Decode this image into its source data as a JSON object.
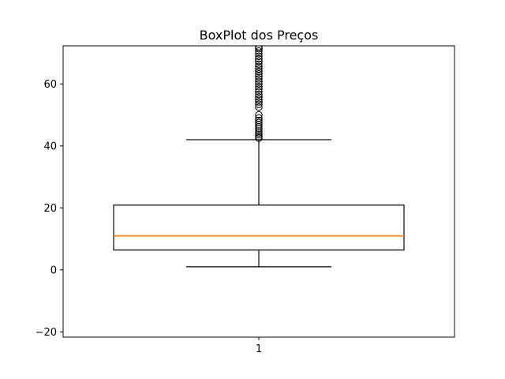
{
  "chart_data": {
    "type": "box",
    "title": "BoxPlot dos Preços",
    "xlabel": "",
    "ylabel": "",
    "ylim": [
      -21.7,
      72.3
    ],
    "yticks": [
      -20,
      0,
      20,
      40,
      60
    ],
    "xticks": [
      "1"
    ],
    "grid": false,
    "box": {
      "category": "1",
      "whisker_low": 1.0,
      "q1": 6.4,
      "median": 11.0,
      "q3": 20.9,
      "whisker_high": 42.0,
      "outliers": [
        42.5,
        43.0,
        43.6,
        44.2,
        44.8,
        45.5,
        46.1,
        46.8,
        47.5,
        48.2,
        49.0,
        50.0,
        52.5,
        53.4,
        54.2,
        55.0,
        55.8,
        56.6,
        57.5,
        58.3,
        59.1,
        60.0,
        60.8,
        61.6,
        62.4,
        63.2,
        64.0,
        64.8,
        65.6,
        66.4,
        67.3,
        68.1,
        68.9,
        69.8,
        70.6,
        71.4,
        72.0
      ]
    },
    "colors": {
      "box": "#000000",
      "median": "#ff7f0e",
      "outlier_edge": "#000000"
    }
  }
}
